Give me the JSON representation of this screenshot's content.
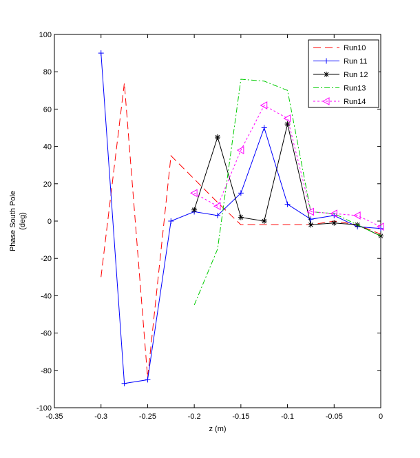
{
  "chart_data": {
    "type": "line",
    "xlabel": "z (m)",
    "ylabel_lines": [
      "Phase South Pole",
      "(deg)"
    ],
    "xlim": [
      -0.35,
      0
    ],
    "ylim": [
      -100,
      100
    ],
    "xticks": [
      -0.35,
      -0.3,
      -0.25,
      -0.2,
      -0.15,
      -0.1,
      -0.05,
      0
    ],
    "xtick_labels": [
      "-0.35",
      "-0.3",
      "-0.25",
      "-0.2",
      "-0.15",
      "-0.1",
      "-0.05",
      "0"
    ],
    "yticks": [
      -100,
      -80,
      -60,
      -40,
      -20,
      0,
      20,
      40,
      60,
      80,
      100
    ],
    "ytick_labels": [
      "-100",
      "-80",
      "-60",
      "-40",
      "-20",
      "0",
      "20",
      "40",
      "60",
      "80",
      "100"
    ],
    "grid": false,
    "legend_position": "top-right",
    "series": [
      {
        "name": "Run10",
        "color": "#ff0000",
        "dash": "11,6",
        "marker": "none",
        "x": [
          -0.3,
          -0.275,
          -0.25,
          -0.225,
          -0.175,
          -0.15,
          -0.125,
          -0.1,
          -0.075,
          -0.05,
          -0.025,
          0
        ],
        "y": [
          -30,
          74,
          -84,
          35,
          10,
          -2,
          -2,
          -2,
          -2,
          0,
          -2,
          -7
        ]
      },
      {
        "name": "Run 11",
        "color": "#0000ff",
        "dash": "",
        "marker": "plus",
        "x": [
          -0.3,
          -0.275,
          -0.25,
          -0.225,
          -0.2,
          -0.175,
          -0.15,
          -0.125,
          -0.1,
          -0.075,
          -0.05,
          -0.025,
          0
        ],
        "y": [
          90,
          -87,
          -85,
          0,
          5,
          3,
          15,
          50,
          9,
          1,
          3,
          -3,
          -4
        ]
      },
      {
        "name": "Run 12",
        "color": "#000000",
        "dash": "",
        "marker": "star",
        "x": [
          -0.2,
          -0.175,
          -0.15,
          -0.125,
          -0.1,
          -0.075,
          -0.05,
          -0.025,
          0
        ],
        "y": [
          6,
          45,
          2,
          0,
          52,
          -2,
          -1,
          -2,
          -8
        ]
      },
      {
        "name": "Run13",
        "color": "#00cc00",
        "dash": "8,3,2,3",
        "marker": "none",
        "x": [
          -0.2,
          -0.175,
          -0.15,
          -0.125,
          -0.1,
          -0.075,
          -0.05,
          -0.025,
          0
        ],
        "y": [
          -45,
          -15,
          76,
          75,
          70,
          5,
          4,
          -2,
          -8
        ]
      },
      {
        "name": "Run14",
        "color": "#ff00ff",
        "dash": "3,3",
        "marker": "triangle-left",
        "x": [
          -0.2,
          -0.175,
          -0.15,
          -0.125,
          -0.1,
          -0.075,
          -0.05,
          -0.025,
          0
        ],
        "y": [
          15,
          8,
          38,
          62,
          55,
          5,
          4,
          3,
          -3
        ]
      }
    ]
  }
}
